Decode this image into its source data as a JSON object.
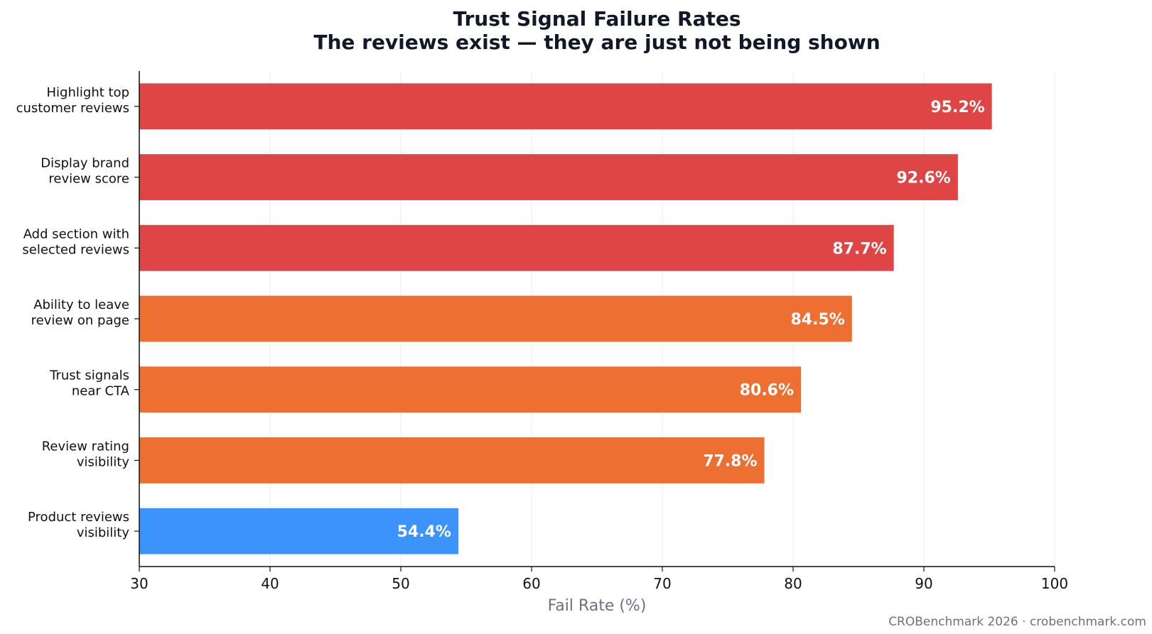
{
  "chart_data": {
    "type": "bar",
    "orientation": "horizontal",
    "title": "Trust Signal Failure Rates",
    "subtitle": "The reviews exist — they are just not being shown",
    "xlabel": "Fail Rate (%)",
    "ylabel": "",
    "xlim": [
      30,
      100
    ],
    "xticks": [
      30,
      40,
      50,
      60,
      70,
      80,
      90,
      100
    ],
    "grid": true,
    "categories": [
      [
        "Highlight top",
        "customer reviews"
      ],
      [
        "Display brand",
        "review score"
      ],
      [
        "Add section with",
        "selected reviews"
      ],
      [
        "Ability to leave",
        "review on page"
      ],
      [
        "Trust signals",
        "near CTA"
      ],
      [
        "Review rating",
        "visibility"
      ],
      [
        "Product reviews",
        "visibility"
      ]
    ],
    "values": [
      95.2,
      92.6,
      87.7,
      84.5,
      80.6,
      77.8,
      54.4
    ],
    "value_labels": [
      "95.2%",
      "92.6%",
      "87.7%",
      "84.5%",
      "80.6%",
      "77.8%",
      "54.4%"
    ],
    "colors": [
      "#e04545",
      "#e04545",
      "#e04545",
      "#ed6f31",
      "#ed6f31",
      "#ed6f31",
      "#3b93fb"
    ]
  },
  "footer": "CROBenchmark 2026 · crobenchmark.com"
}
